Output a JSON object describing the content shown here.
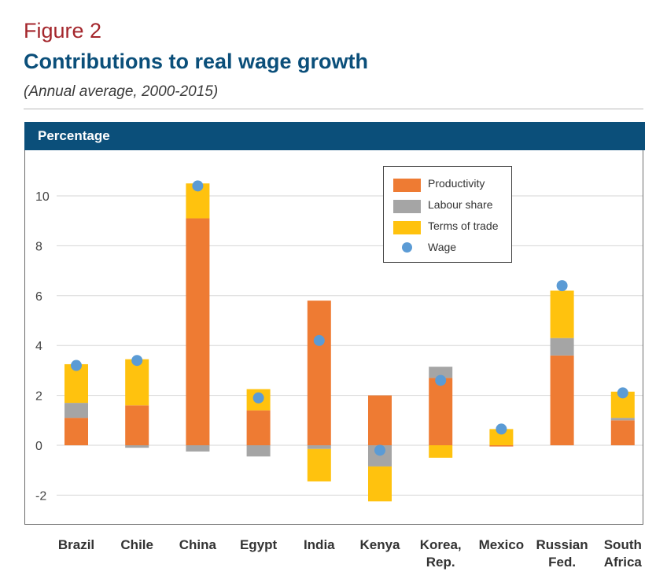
{
  "figure_label": "Figure 2",
  "title": "Contributions to real wage growth",
  "subtitle": "(Annual average, 2000-2015)",
  "band_label": "Percentage",
  "colors": {
    "productivity": "#ee7b33",
    "labour_share": "#a5a5a5",
    "terms_of_trade": "#ffc20e",
    "wage": "#5b9bd5",
    "band": "#0b4f7a",
    "figure_label": "#a4262c",
    "title": "#0b4f7a"
  },
  "chart_data": {
    "type": "bar",
    "stacked": true,
    "categories": [
      "Brazil",
      "Chile",
      "China",
      "Egypt",
      "India",
      "Kenya",
      "Korea,\nRep.",
      "Mexico",
      "Russian\nFed.",
      "South\nAfrica"
    ],
    "series": [
      {
        "name": "Productivity",
        "values": [
          1.1,
          1.6,
          9.1,
          1.4,
          5.8,
          2.0,
          2.7,
          -0.05,
          3.6,
          1.0
        ]
      },
      {
        "name": "Labour share",
        "values": [
          0.6,
          -0.1,
          -0.25,
          -0.45,
          -0.15,
          -0.85,
          0.45,
          0.0,
          0.7,
          0.1
        ]
      },
      {
        "name": "Terms of trade",
        "values": [
          1.55,
          1.85,
          1.4,
          0.85,
          -1.3,
          -1.4,
          -0.5,
          0.65,
          1.9,
          1.05
        ]
      }
    ],
    "markers": {
      "name": "Wage",
      "values": [
        3.2,
        3.4,
        10.4,
        1.9,
        4.2,
        -0.2,
        2.6,
        0.65,
        6.4,
        2.1
      ]
    },
    "yticks": [
      -2,
      0,
      2,
      4,
      6,
      8,
      10
    ],
    "ylim": [
      -3.2,
      11.3
    ],
    "grid": true,
    "legend_position": "top-right"
  }
}
